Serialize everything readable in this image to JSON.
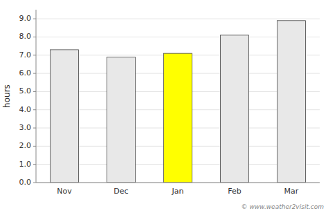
{
  "chart_data": {
    "type": "bar",
    "categories": [
      "Nov",
      "Dec",
      "Jan",
      "Feb",
      "Mar"
    ],
    "values": [
      7.3,
      6.9,
      7.1,
      8.1,
      8.9
    ],
    "colors": [
      "#e8e8e8",
      "#e8e8e8",
      "#ffff00",
      "#e8e8e8",
      "#e8e8e8"
    ],
    "y_label": "hours",
    "ylim": [
      0.0,
      9.5
    ],
    "yticks": [
      {
        "value": 0.0,
        "label": "0.0"
      },
      {
        "value": 1.0,
        "label": "1.0"
      },
      {
        "value": 2.0,
        "label": "2.0"
      },
      {
        "value": 3.0,
        "label": "3.0"
      },
      {
        "value": 4.0,
        "label": "4.0"
      },
      {
        "value": 5.0,
        "label": "5.0"
      },
      {
        "value": 6.0,
        "label": "6.0"
      },
      {
        "value": 7.0,
        "label": "7.0"
      },
      {
        "value": 8.0,
        "label": "8.0"
      },
      {
        "value": 9.0,
        "label": "9.0"
      }
    ],
    "grid": true,
    "annotations": [
      "© www.weather2visit.com"
    ]
  }
}
